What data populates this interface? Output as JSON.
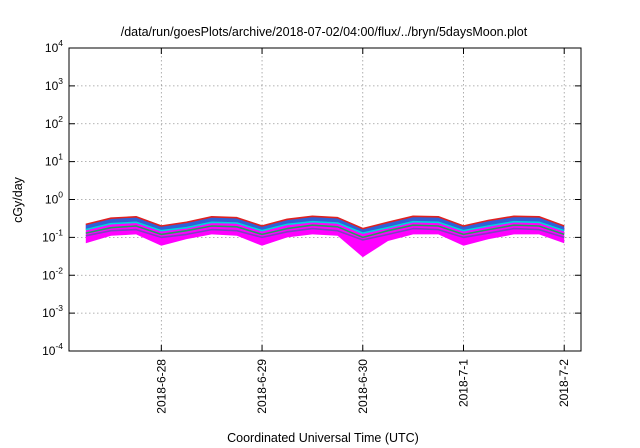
{
  "chart_data": {
    "type": "area",
    "title": "/data/run/goesPlots/archive/2018-07-02/04:00/flux/../bryn/5daysMoon.plot",
    "xlabel": "Coordinated Universal Time (UTC)",
    "ylabel": "cGy/day",
    "yscale": "log",
    "ylim": [
      0.0001,
      10000
    ],
    "y_ticks": [
      {
        "base": "10",
        "exp": "-4",
        "value": 0.0001
      },
      {
        "base": "10",
        "exp": "-3",
        "value": 0.001
      },
      {
        "base": "10",
        "exp": "-2",
        "value": 0.01
      },
      {
        "base": "10",
        "exp": "-1",
        "value": 0.1
      },
      {
        "base": "10",
        "exp": "0",
        "value": 1
      },
      {
        "base": "10",
        "exp": "1",
        "value": 10
      },
      {
        "base": "10",
        "exp": "2",
        "value": 100
      },
      {
        "base": "10",
        "exp": "3",
        "value": 1000
      },
      {
        "base": "10",
        "exp": "4",
        "value": 10000
      }
    ],
    "xlim": [
      "2018-06-27 02:00",
      "2018-07-02 04:00"
    ],
    "x_ticks": [
      "2018-6-28",
      "2018-6-29",
      "2018-6-30",
      "2018-7-1",
      "2018-7-2"
    ],
    "grid": true,
    "colors": {
      "fill_band": "#ff00ff",
      "upper_band": "#3060d8",
      "red_line": "#e02020",
      "cyan_line": "#00d8d8",
      "green_line": "#20a060",
      "purple_line": "#8040c0"
    },
    "series": [
      {
        "x": [
          "2018-06-27 06:00",
          "2018-06-27 12:00",
          "2018-06-27 18:00",
          "2018-06-28 00:00",
          "2018-06-28 06:00",
          "2018-06-28 12:00",
          "2018-06-28 18:00",
          "2018-06-29 00:00",
          "2018-06-29 06:00",
          "2018-06-29 12:00",
          "2018-06-29 18:00",
          "2018-06-30 00:00",
          "2018-06-30 06:00",
          "2018-06-30 12:00",
          "2018-06-30 18:00",
          "2018-07-01 00:00",
          "2018-07-01 06:00",
          "2018-07-01 12:00",
          "2018-07-01 18:00",
          "2018-07-02 00:00"
        ],
        "y": [
          0.22,
          0.32,
          0.35,
          0.2,
          0.25,
          0.35,
          0.33,
          0.2,
          0.3,
          0.36,
          0.33,
          0.17,
          0.25,
          0.36,
          0.35,
          0.2,
          0.28,
          0.36,
          0.35,
          0.2
        ]
      },
      {
        "x": [
          "2018-06-27 06:00",
          "2018-06-27 12:00",
          "2018-06-27 18:00",
          "2018-06-28 00:00",
          "2018-06-28 06:00",
          "2018-06-28 12:00",
          "2018-06-28 18:00",
          "2018-06-29 00:00",
          "2018-06-29 06:00",
          "2018-06-29 12:00",
          "2018-06-29 18:00",
          "2018-06-30 00:00",
          "2018-06-30 06:00",
          "2018-06-30 12:00",
          "2018-06-30 18:00",
          "2018-07-01 00:00",
          "2018-07-01 06:00",
          "2018-07-01 12:00",
          "2018-07-01 18:00",
          "2018-07-02 00:00"
        ],
        "y": [
          0.16,
          0.23,
          0.25,
          0.15,
          0.18,
          0.25,
          0.24,
          0.15,
          0.22,
          0.26,
          0.24,
          0.13,
          0.18,
          0.26,
          0.25,
          0.15,
          0.2,
          0.26,
          0.25,
          0.15
        ]
      },
      {
        "x": [
          "2018-06-27 06:00",
          "2018-06-27 12:00",
          "2018-06-27 18:00",
          "2018-06-28 00:00",
          "2018-06-28 06:00",
          "2018-06-28 12:00",
          "2018-06-28 18:00",
          "2018-06-29 00:00",
          "2018-06-29 06:00",
          "2018-06-29 12:00",
          "2018-06-29 18:00",
          "2018-06-30 00:00",
          "2018-06-30 06:00",
          "2018-06-30 12:00",
          "2018-06-30 18:00",
          "2018-07-01 00:00",
          "2018-07-01 06:00",
          "2018-07-01 12:00",
          "2018-07-01 18:00",
          "2018-07-02 00:00"
        ],
        "y": [
          0.13,
          0.18,
          0.2,
          0.12,
          0.15,
          0.2,
          0.19,
          0.12,
          0.17,
          0.21,
          0.19,
          0.1,
          0.15,
          0.21,
          0.2,
          0.12,
          0.16,
          0.21,
          0.2,
          0.12
        ]
      },
      {
        "x": [
          "2018-06-27 06:00",
          "2018-06-27 12:00",
          "2018-06-27 18:00",
          "2018-06-28 00:00",
          "2018-06-28 06:00",
          "2018-06-28 12:00",
          "2018-06-28 18:00",
          "2018-06-29 00:00",
          "2018-06-29 06:00",
          "2018-06-29 12:00",
          "2018-06-29 18:00",
          "2018-06-30 00:00",
          "2018-06-30 06:00",
          "2018-06-30 12:00",
          "2018-06-30 18:00",
          "2018-07-01 00:00",
          "2018-07-01 06:00",
          "2018-07-01 12:00",
          "2018-07-01 18:00",
          "2018-07-02 00:00"
        ],
        "y": [
          0.11,
          0.15,
          0.16,
          0.1,
          0.12,
          0.16,
          0.15,
          0.1,
          0.14,
          0.17,
          0.15,
          0.085,
          0.12,
          0.17,
          0.16,
          0.1,
          0.13,
          0.17,
          0.16,
          0.1
        ]
      },
      {
        "x": [
          "2018-06-27 06:00",
          "2018-06-27 12:00",
          "2018-06-27 18:00",
          "2018-06-28 00:00",
          "2018-06-28 06:00",
          "2018-06-28 12:00",
          "2018-06-28 18:00",
          "2018-06-29 00:00",
          "2018-06-29 06:00",
          "2018-06-29 12:00",
          "2018-06-29 18:00",
          "2018-06-30 00:00",
          "2018-06-30 06:00",
          "2018-06-30 12:00",
          "2018-06-30 18:00",
          "2018-07-01 00:00",
          "2018-07-01 06:00",
          "2018-07-01 12:00",
          "2018-07-01 18:00",
          "2018-07-02 00:00"
        ],
        "y": [
          0.07,
          0.11,
          0.12,
          0.06,
          0.09,
          0.12,
          0.11,
          0.06,
          0.1,
          0.12,
          0.11,
          0.03,
          0.08,
          0.12,
          0.12,
          0.06,
          0.09,
          0.12,
          0.12,
          0.07
        ]
      }
    ]
  }
}
